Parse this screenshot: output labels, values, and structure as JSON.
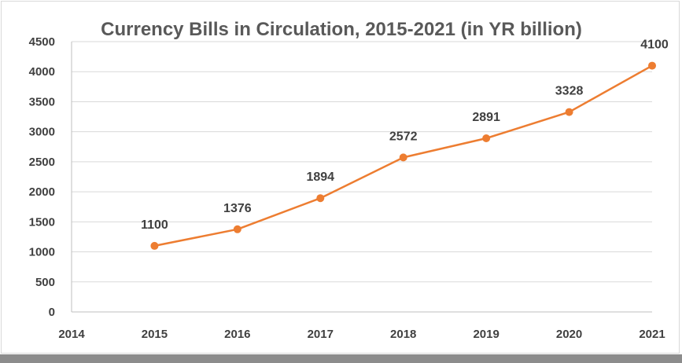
{
  "chart_data": {
    "type": "line",
    "title": "Currency Bills in Circulation, 2015-2021 (in YR billion)",
    "xlabel": "",
    "ylabel": "",
    "x": [
      2015,
      2016,
      2017,
      2018,
      2019,
      2020,
      2021
    ],
    "y": [
      1100,
      1376,
      1894,
      2572,
      2891,
      3328,
      4100
    ],
    "data_labels": [
      "1100",
      "1376",
      "1894",
      "2572",
      "2891",
      "3328",
      "4100"
    ],
    "xlim": [
      2014,
      2021
    ],
    "ylim": [
      0,
      4500
    ],
    "xticks": [
      "2014",
      "2015",
      "2016",
      "2017",
      "2018",
      "2019",
      "2020",
      "2021"
    ],
    "yticks": [
      "0",
      "500",
      "1000",
      "1500",
      "2000",
      "2500",
      "3000",
      "3500",
      "4000",
      "4500"
    ],
    "grid": true,
    "legend": "none",
    "colors": {
      "series": "#ED7D31",
      "grid": "#d9d9d9",
      "axis": "#bfbfbf",
      "text": "#404040",
      "title": "#595959"
    }
  }
}
